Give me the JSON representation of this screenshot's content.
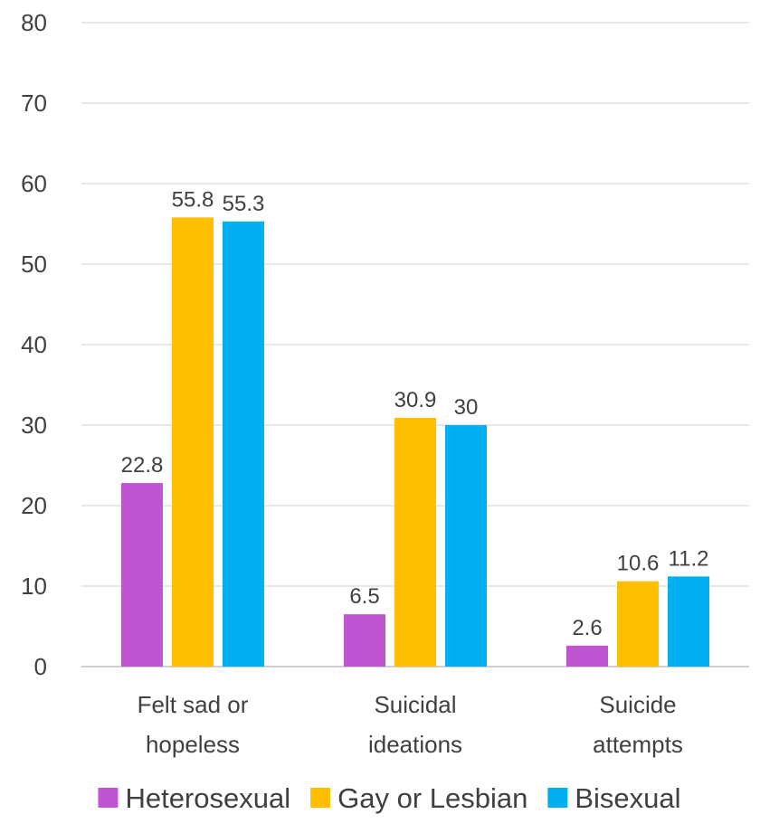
{
  "chart_data": {
    "type": "bar",
    "categories": [
      [
        "Felt sad or",
        "hopeless"
      ],
      [
        "Suicidal",
        "ideations"
      ],
      [
        "Suicide",
        "attempts"
      ]
    ],
    "series": [
      {
        "name": "Heterosexual",
        "color": "#c055d1",
        "values": [
          22.8,
          6.5,
          2.6
        ]
      },
      {
        "name": "Gay or Lesbian",
        "color": "#ffbf00",
        "values": [
          55.8,
          30.9,
          10.6
        ]
      },
      {
        "name": "Bisexual",
        "color": "#00b0f0",
        "values": [
          55.3,
          30,
          11.2
        ]
      }
    ],
    "ylim": [
      0,
      80
    ],
    "yticks": [
      0,
      10,
      20,
      30,
      40,
      50,
      60,
      70,
      80
    ],
    "grid": true,
    "legend": "bottom",
    "data_labels": true
  }
}
